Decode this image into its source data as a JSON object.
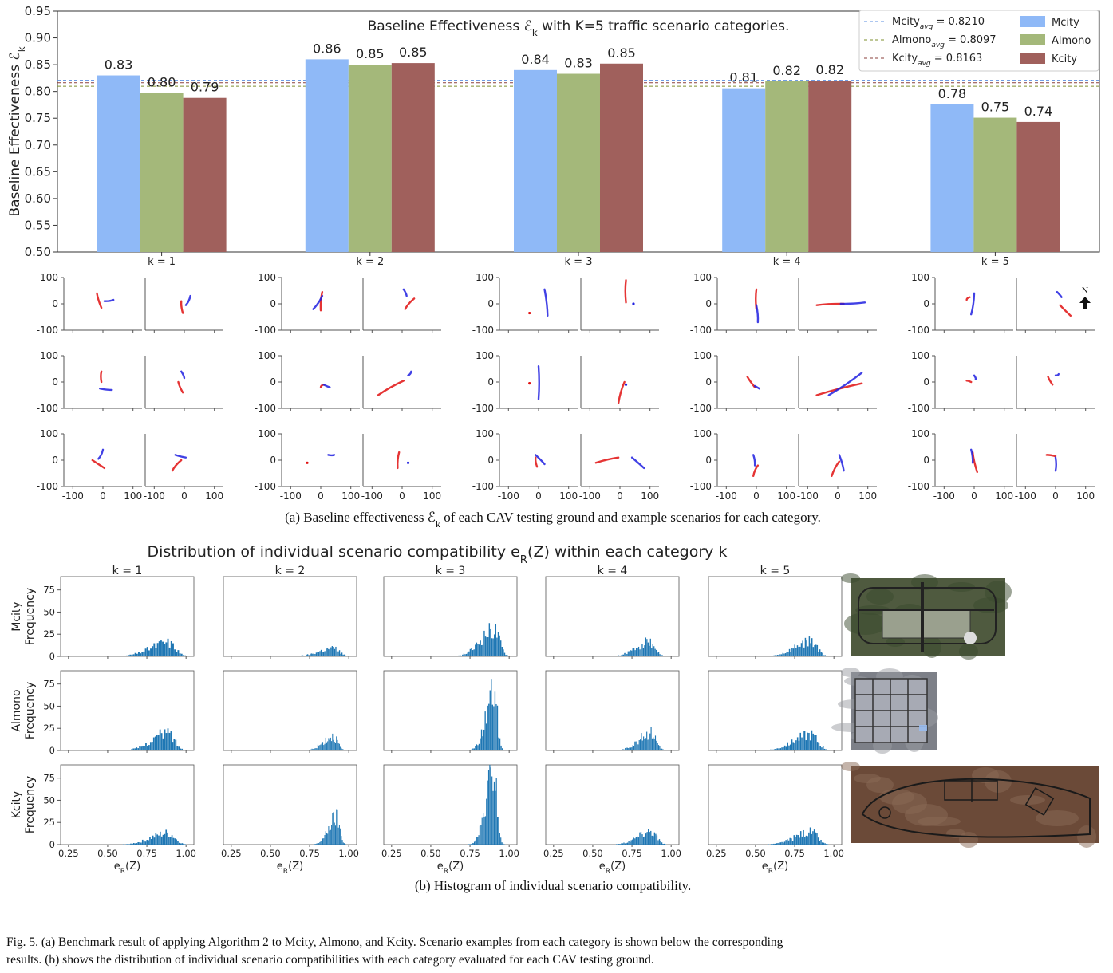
{
  "chart_data": [
    {
      "type": "bar",
      "title": "Baseline Effectiveness ℰ_k with K=5 traffic scenario categories.",
      "ylabel": "Baseline Effectiveness ℰ_k",
      "ylim": [
        0.5,
        0.95
      ],
      "yticks": [
        "0.50",
        "0.55",
        "0.60",
        "0.65",
        "0.70",
        "0.75",
        "0.80",
        "0.85",
        "0.90",
        "0.95"
      ],
      "categories": [
        "k = 1",
        "k = 2",
        "k = 3",
        "k = 4",
        "k = 5"
      ],
      "series": [
        {
          "name": "Mcity",
          "color": "#8fb9f7",
          "values": [
            0.83,
            0.86,
            0.84,
            0.806,
            0.776
          ],
          "labels": [
            "0.83",
            "0.86",
            "0.84",
            "0.81",
            "0.78"
          ]
        },
        {
          "name": "Almono",
          "color": "#a4b87a",
          "values": [
            0.797,
            0.85,
            0.833,
            0.819,
            0.751
          ],
          "labels": [
            "0.80",
            "0.85",
            "0.83",
            "0.82",
            "0.75"
          ]
        },
        {
          "name": "Kcity",
          "color": "#a0605c",
          "values": [
            0.788,
            0.853,
            0.852,
            0.82,
            0.743
          ],
          "labels": [
            "0.79",
            "0.85",
            "0.85",
            "0.82",
            "0.74"
          ]
        }
      ],
      "averages": [
        {
          "label": "Mcity",
          "sub": "avg",
          "value_text": " = 0.8210",
          "value": 0.821,
          "color": "#5b8fe0"
        },
        {
          "label": "Almono",
          "sub": "avg",
          "value_text": " = 0.8097",
          "value": 0.8097,
          "color": "#7d8f2e"
        },
        {
          "label": "Kcity",
          "sub": "avg",
          "value_text": " = 0.8163",
          "value": 0.8163,
          "color": "#8a3f3b"
        }
      ],
      "legend_position": "top-right",
      "grid": false
    },
    {
      "type": "scatter",
      "description_free": true,
      "xlim": [
        -130,
        130
      ],
      "ylim": [
        -100,
        100
      ],
      "xticks": [
        "-100",
        "0",
        "100"
      ],
      "yticks": [
        "100",
        "0",
        "-100"
      ],
      "north_label": "N",
      "trajectories": [
        [
          [
            [
              [
                -5,
                -15
              ],
              [
                -20,
                40
              ]
            ],
            [
              [
                5,
                10
              ],
              [
                35,
                15
              ]
            ]
          ],
          [
            [
              [
                -10,
                10
              ],
              [
                -5,
                -35
              ]
            ],
            [
              [
                20,
                30
              ],
              [
                5,
                -5
              ]
            ]
          ]
        ],
        [
          [
            [
              [
                0,
                -25
              ],
              [
                5,
                45
              ]
            ],
            [
              [
                5,
                30
              ],
              [
                -25,
                -20
              ]
            ]
          ],
          [
            [
              [
                40,
                20
              ],
              [
                10,
                -20
              ]
            ],
            [
              [
                5,
                55
              ],
              [
                15,
                30
              ]
            ]
          ]
        ],
        [
          [
            [
              [
                -30,
                -35
              ]
            ],
            [
              [
                30,
                -45
              ],
              [
                20,
                55
              ]
            ]
          ],
          [
            [
              [
                20,
                5
              ],
              [
                20,
                90
              ]
            ],
            [
              [
                45,
                0
              ]
            ]
          ]
        ],
        [
          [
            [
              [
                0,
                -20
              ],
              [
                0,
                55
              ]
            ],
            [
              [
                0,
                -5
              ],
              [
                5,
                -70
              ]
            ]
          ],
          [
            [
              [
                -70,
                -5
              ],
              [
                20,
                0
              ]
            ],
            [
              [
                10,
                0
              ],
              [
                90,
                5
              ]
            ]
          ]
        ],
        [
          [
            [
              [
                -15,
                25
              ],
              [
                -25,
                15
              ]
            ],
            [
              [
                -10,
                -40
              ],
              [
                0,
                40
              ]
            ]
          ],
          [
            [
              [
                15,
                -5
              ],
              [
                50,
                -45
              ]
            ],
            [
              [
                20,
                25
              ],
              [
                5,
                45
              ]
            ]
          ]
        ],
        [
          [
            [
              [
                -5,
                0
              ],
              [
                -5,
                40
              ]
            ],
            [
              [
                -10,
                -25
              ],
              [
                30,
                -30
              ]
            ]
          ],
          [
            [
              [
                -20,
                0
              ],
              [
                -5,
                -40
              ]
            ],
            [
              [
                0,
                15
              ],
              [
                -10,
                40
              ]
            ]
          ]
        ],
        [
          [
            [
              [
                10,
                -10
              ],
              [
                0,
                -20
              ]
            ],
            [
              [
                10,
                -10
              ],
              [
                30,
                -20
              ]
            ]
          ],
          [
            [
              [
                5,
                5
              ],
              [
                -80,
                -50
              ]
            ],
            [
              [
                20,
                25
              ],
              [
                30,
                40
              ]
            ]
          ]
        ],
        [
          [
            [
              [
                -30,
                -5
              ]
            ],
            [
              [
                0,
                -65
              ],
              [
                0,
                60
              ]
            ]
          ],
          [
            [
              [
                15,
                0
              ],
              [
                -5,
                -80
              ]
            ],
            [
              [
                20,
                -10
              ]
            ]
          ]
        ],
        [
          [
            [
              [
                -30,
                20
              ],
              [
                -5,
                -20
              ]
            ],
            [
              [
                -5,
                -15
              ],
              [
                10,
                -25
              ]
            ]
          ],
          [
            [
              [
                -70,
                -50
              ],
              [
                80,
                -5
              ]
            ],
            [
              [
                -30,
                -50
              ],
              [
                80,
                35
              ]
            ]
          ]
        ],
        [
          [
            [
              [
                -10,
                0
              ],
              [
                -25,
                5
              ]
            ],
            [
              [
                0,
                25
              ],
              [
                5,
                10
              ]
            ]
          ],
          [
            [
              [
                -25,
                20
              ],
              [
                -10,
                -10
              ]
            ],
            [
              [
                0,
                25
              ],
              [
                10,
                30
              ]
            ]
          ]
        ],
        [
          [
            [
              [
                -35,
                0
              ],
              [
                5,
                -30
              ]
            ],
            [
              [
                0,
                40
              ],
              [
                -15,
                5
              ]
            ]
          ],
          [
            [
              [
                -10,
                0
              ],
              [
                -40,
                -40
              ]
            ],
            [
              [
                -30,
                20
              ],
              [
                5,
                10
              ]
            ]
          ]
        ],
        [
          [
            [
              [
                -45,
                -10
              ]
            ],
            [
              [
                45,
                20
              ],
              [
                25,
                20
              ]
            ]
          ],
          [
            [
              [
                -10,
                30
              ],
              [
                -15,
                -30
              ]
            ],
            [
              [
                20,
                -10
              ]
            ]
          ]
        ],
        [
          [
            [
              [
                -5,
                -25
              ],
              [
                -10,
                10
              ]
            ],
            [
              [
                -10,
                20
              ],
              [
                20,
                -15
              ]
            ]
          ],
          [
            [
              [
                -5,
                10
              ],
              [
                -80,
                -10
              ]
            ],
            [
              [
                40,
                10
              ],
              [
                80,
                -30
              ]
            ]
          ]
        ],
        [
          [
            [
              [
                -10,
                -60
              ],
              [
                5,
                -20
              ]
            ],
            [
              [
                -10,
                20
              ],
              [
                -5,
                -20
              ]
            ]
          ],
          [
            [
              [
                -20,
                -60
              ],
              [
                5,
                -5
              ]
            ],
            [
              [
                5,
                20
              ],
              [
                20,
                -40
              ]
            ]
          ]
        ],
        [
          [
            [
              [
                -5,
                30
              ],
              [
                10,
                -45
              ]
            ],
            [
              [
                -5,
                -10
              ],
              [
                -10,
                40
              ]
            ]
          ],
          [
            [
              [
                -30,
                20
              ],
              [
                0,
                15
              ]
            ],
            [
              [
                0,
                10
              ],
              [
                0,
                -40
              ]
            ]
          ]
        ]
      ],
      "row_ticks_visible": false
    },
    {
      "type": "histogram",
      "title": "Distribution of individual scenario compatibility e_R(Z) within each category k",
      "columns": [
        "k = 1",
        "k = 2",
        "k = 3",
        "k = 4",
        "k = 5"
      ],
      "rows": [
        "Mcity",
        "Almono",
        "Kcity"
      ],
      "ylabel": "Frequency",
      "xlabel": "e_R(Z)",
      "xlim": [
        0.2,
        1.05
      ],
      "ylim": [
        0,
        90
      ],
      "xticks": [
        "0.25",
        "0.50",
        "0.75",
        "1.00"
      ],
      "yticks": [
        "0",
        "25",
        "50",
        "75"
      ],
      "color": "#1f77b4",
      "peaks": [
        [
          [
            0.88,
            17,
            0.16,
            0.3
          ],
          [
            0.9,
            10,
            0.13,
            0.5
          ],
          [
            0.9,
            33,
            0.12,
            0.48
          ],
          [
            0.86,
            18,
            0.12,
            0.52
          ],
          [
            0.85,
            19,
            0.14,
            0.46
          ]
        ],
        [
          [
            0.88,
            22,
            0.14,
            0.36
          ],
          [
            0.9,
            18,
            0.09,
            0.6
          ],
          [
            0.9,
            73,
            0.07,
            0.5
          ],
          [
            0.87,
            22,
            0.11,
            0.56
          ],
          [
            0.85,
            20,
            0.15,
            0.42
          ]
        ],
        [
          [
            0.88,
            14,
            0.15,
            0.4
          ],
          [
            0.92,
            33,
            0.07,
            0.6
          ],
          [
            0.9,
            88,
            0.07,
            0.55
          ],
          [
            0.87,
            17,
            0.12,
            0.5
          ],
          [
            0.85,
            16,
            0.14,
            0.45
          ]
        ]
      ]
    }
  ],
  "captions": {
    "a": "(a) Baseline effectiveness ℰ_k of each CAV testing ground and example scenarios for each category.",
    "b": "(b) Histogram of individual scenario compatibility.",
    "fig_line1": "Fig. 5. (a) Benchmark result of applying Algorithm 2 to Mcity, Almono, and Kcity. Scenario examples from each category is shown below the corresponding",
    "fig_line2": "results. (b) shows the distribution of individual scenario compatibilities with each category evaluated for each CAV testing ground."
  },
  "maps": [
    {
      "name": "Mcity map",
      "bg": "#4f5a3f"
    },
    {
      "name": "Almono map",
      "bg": "#7d8088"
    },
    {
      "name": "Kcity map",
      "bg": "#6b4a38"
    }
  ]
}
